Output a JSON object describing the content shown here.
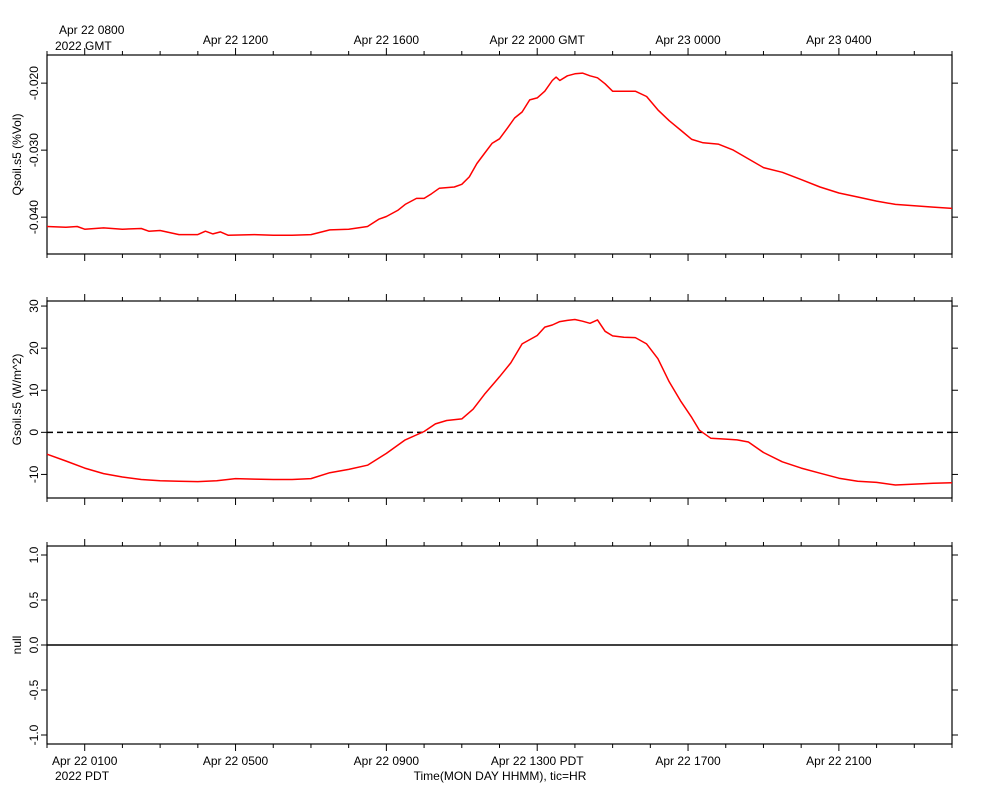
{
  "gmt_axis": {
    "year_label": "2022 GMT",
    "ticks": [
      "Apr 22 0800",
      "Apr 22 1200",
      "Apr 22 1600",
      "Apr 22 2000 GMT",
      "Apr 23 0000",
      "Apr 23 0400"
    ]
  },
  "pdt_axis": {
    "year_label": "2022 PDT",
    "ticks": [
      "Apr 22 0100",
      "Apr 22 0500",
      "Apr 22 0900",
      "Apr 22 1300 PDT",
      "Apr 22 1700",
      "Apr 22 2100"
    ],
    "xlabel": "Time(MON DAY HHMM), tic=HR"
  },
  "colors": {
    "series": "#ff0000",
    "axis": "#000000",
    "background": "#ffffff"
  },
  "chart_data": [
    {
      "type": "line",
      "ylabel": "Qsoil.s5 (%Vol)",
      "yticks": [
        "-0.020",
        "-0.030",
        "-0.040"
      ],
      "ylim": [
        -0.0455,
        -0.0158
      ],
      "xlim": [
        0,
        24
      ],
      "x_unit": "hours since Apr 22 0000 PDT",
      "zero_line": false,
      "series": [
        {
          "points": [
            [
              0,
              -0.0414
            ],
            [
              0.5,
              -0.0415
            ],
            [
              0.8,
              -0.0414
            ],
            [
              1.0,
              -0.0418
            ],
            [
              1.5,
              -0.0416
            ],
            [
              2.0,
              -0.0418
            ],
            [
              2.5,
              -0.0417
            ],
            [
              2.7,
              -0.0421
            ],
            [
              3.0,
              -0.042
            ],
            [
              3.5,
              -0.0426
            ],
            [
              4.0,
              -0.0426
            ],
            [
              4.2,
              -0.0421
            ],
            [
              4.4,
              -0.0425
            ],
            [
              4.6,
              -0.0422
            ],
            [
              4.8,
              -0.0427
            ],
            [
              5.5,
              -0.0426
            ],
            [
              6.0,
              -0.0427
            ],
            [
              6.5,
              -0.0427
            ],
            [
              7.0,
              -0.0426
            ],
            [
              7.5,
              -0.0419
            ],
            [
              8.0,
              -0.0418
            ],
            [
              8.5,
              -0.0414
            ],
            [
              8.8,
              -0.0403
            ],
            [
              9.0,
              -0.0399
            ],
            [
              9.3,
              -0.039
            ],
            [
              9.5,
              -0.0381
            ],
            [
              9.8,
              -0.0372
            ],
            [
              10.0,
              -0.0372
            ],
            [
              10.2,
              -0.0365
            ],
            [
              10.4,
              -0.0357
            ],
            [
              10.8,
              -0.0355
            ],
            [
              11.0,
              -0.0351
            ],
            [
              11.2,
              -0.034
            ],
            [
              11.4,
              -0.032
            ],
            [
              11.6,
              -0.0305
            ],
            [
              11.8,
              -0.029
            ],
            [
              12.0,
              -0.0283
            ],
            [
              12.2,
              -0.0268
            ],
            [
              12.4,
              -0.0252
            ],
            [
              12.6,
              -0.0243
            ],
            [
              12.8,
              -0.0225
            ],
            [
              13.0,
              -0.0222
            ],
            [
              13.2,
              -0.0212
            ],
            [
              13.4,
              -0.0196
            ],
            [
              13.5,
              -0.0191
            ],
            [
              13.6,
              -0.0196
            ],
            [
              13.8,
              -0.0189
            ],
            [
              14.0,
              -0.0186
            ],
            [
              14.2,
              -0.0185
            ],
            [
              14.4,
              -0.0189
            ],
            [
              14.6,
              -0.0192
            ],
            [
              14.8,
              -0.0201
            ],
            [
              15.0,
              -0.0212
            ],
            [
              15.3,
              -0.0212
            ],
            [
              15.6,
              -0.0212
            ],
            [
              15.9,
              -0.022
            ],
            [
              16.2,
              -0.024
            ],
            [
              16.5,
              -0.0256
            ],
            [
              16.8,
              -0.027
            ],
            [
              17.1,
              -0.0284
            ],
            [
              17.4,
              -0.0289
            ],
            [
              17.8,
              -0.0291
            ],
            [
              18.2,
              -0.03
            ],
            [
              18.6,
              -0.0313
            ],
            [
              19.0,
              -0.0326
            ],
            [
              19.5,
              -0.0333
            ],
            [
              20.0,
              -0.0344
            ],
            [
              20.5,
              -0.0355
            ],
            [
              21.0,
              -0.0364
            ],
            [
              21.5,
              -0.037
            ],
            [
              22.0,
              -0.0376
            ],
            [
              22.5,
              -0.0381
            ],
            [
              23.0,
              -0.0383
            ],
            [
              23.5,
              -0.0385
            ],
            [
              24.0,
              -0.0387
            ]
          ]
        }
      ]
    },
    {
      "type": "line",
      "ylabel": "Gsoil.s5 (W/m^2)",
      "yticks": [
        "30",
        "20",
        "10",
        "0",
        "-10"
      ],
      "ylim": [
        -15.6,
        31.2
      ],
      "xlim": [
        0,
        24
      ],
      "x_unit": "hours since Apr 22 0000 PDT",
      "zero_line": true,
      "series": [
        {
          "points": [
            [
              0,
              -5.2
            ],
            [
              0.5,
              -6.8
            ],
            [
              1.0,
              -8.5
            ],
            [
              1.5,
              -9.8
            ],
            [
              2.0,
              -10.6
            ],
            [
              2.5,
              -11.2
            ],
            [
              3.0,
              -11.5
            ],
            [
              3.5,
              -11.6
            ],
            [
              4.0,
              -11.7
            ],
            [
              4.5,
              -11.5
            ],
            [
              5.0,
              -11.0
            ],
            [
              5.5,
              -11.1
            ],
            [
              6.0,
              -11.2
            ],
            [
              6.5,
              -11.2
            ],
            [
              7.0,
              -11.0
            ],
            [
              7.5,
              -9.6
            ],
            [
              8.0,
              -8.8
            ],
            [
              8.5,
              -7.8
            ],
            [
              9.0,
              -5.0
            ],
            [
              9.5,
              -1.8
            ],
            [
              10.0,
              0.2
            ],
            [
              10.3,
              2.0
            ],
            [
              10.6,
              2.8
            ],
            [
              11.0,
              3.2
            ],
            [
              11.3,
              5.5
            ],
            [
              11.6,
              9.0
            ],
            [
              12.0,
              13.2
            ],
            [
              12.3,
              16.5
            ],
            [
              12.6,
              21.0
            ],
            [
              13.0,
              23.0
            ],
            [
              13.2,
              25.0
            ],
            [
              13.4,
              25.5
            ],
            [
              13.6,
              26.3
            ],
            [
              13.8,
              26.6
            ],
            [
              14.0,
              26.8
            ],
            [
              14.2,
              26.4
            ],
            [
              14.4,
              25.9
            ],
            [
              14.6,
              26.7
            ],
            [
              14.8,
              24.0
            ],
            [
              15.0,
              22.9
            ],
            [
              15.3,
              22.6
            ],
            [
              15.6,
              22.5
            ],
            [
              15.9,
              21.0
            ],
            [
              16.2,
              17.5
            ],
            [
              16.5,
              12.0
            ],
            [
              16.8,
              7.5
            ],
            [
              17.1,
              3.5
            ],
            [
              17.3,
              0.5
            ],
            [
              17.6,
              -1.4
            ],
            [
              18.0,
              -1.6
            ],
            [
              18.3,
              -1.8
            ],
            [
              18.6,
              -2.3
            ],
            [
              19.0,
              -4.8
            ],
            [
              19.5,
              -7.0
            ],
            [
              20.0,
              -8.5
            ],
            [
              20.5,
              -9.7
            ],
            [
              21.0,
              -10.9
            ],
            [
              21.5,
              -11.6
            ],
            [
              22.0,
              -11.9
            ],
            [
              22.5,
              -12.5
            ],
            [
              23.0,
              -12.3
            ],
            [
              23.5,
              -12.1
            ],
            [
              24.0,
              -12.0
            ]
          ]
        }
      ]
    },
    {
      "type": "line",
      "ylabel": "null",
      "yticks": [
        "1.0",
        "0.5",
        "0.0",
        "-0.5",
        "-1.0"
      ],
      "ylim": [
        -1.1,
        1.1
      ],
      "xlim": [
        0,
        24
      ],
      "x_unit": "hours since Apr 22 0000 PDT",
      "zero_line": false,
      "series": [
        {
          "points": [
            [
              0,
              0
            ],
            [
              24,
              0
            ]
          ]
        }
      ]
    }
  ]
}
